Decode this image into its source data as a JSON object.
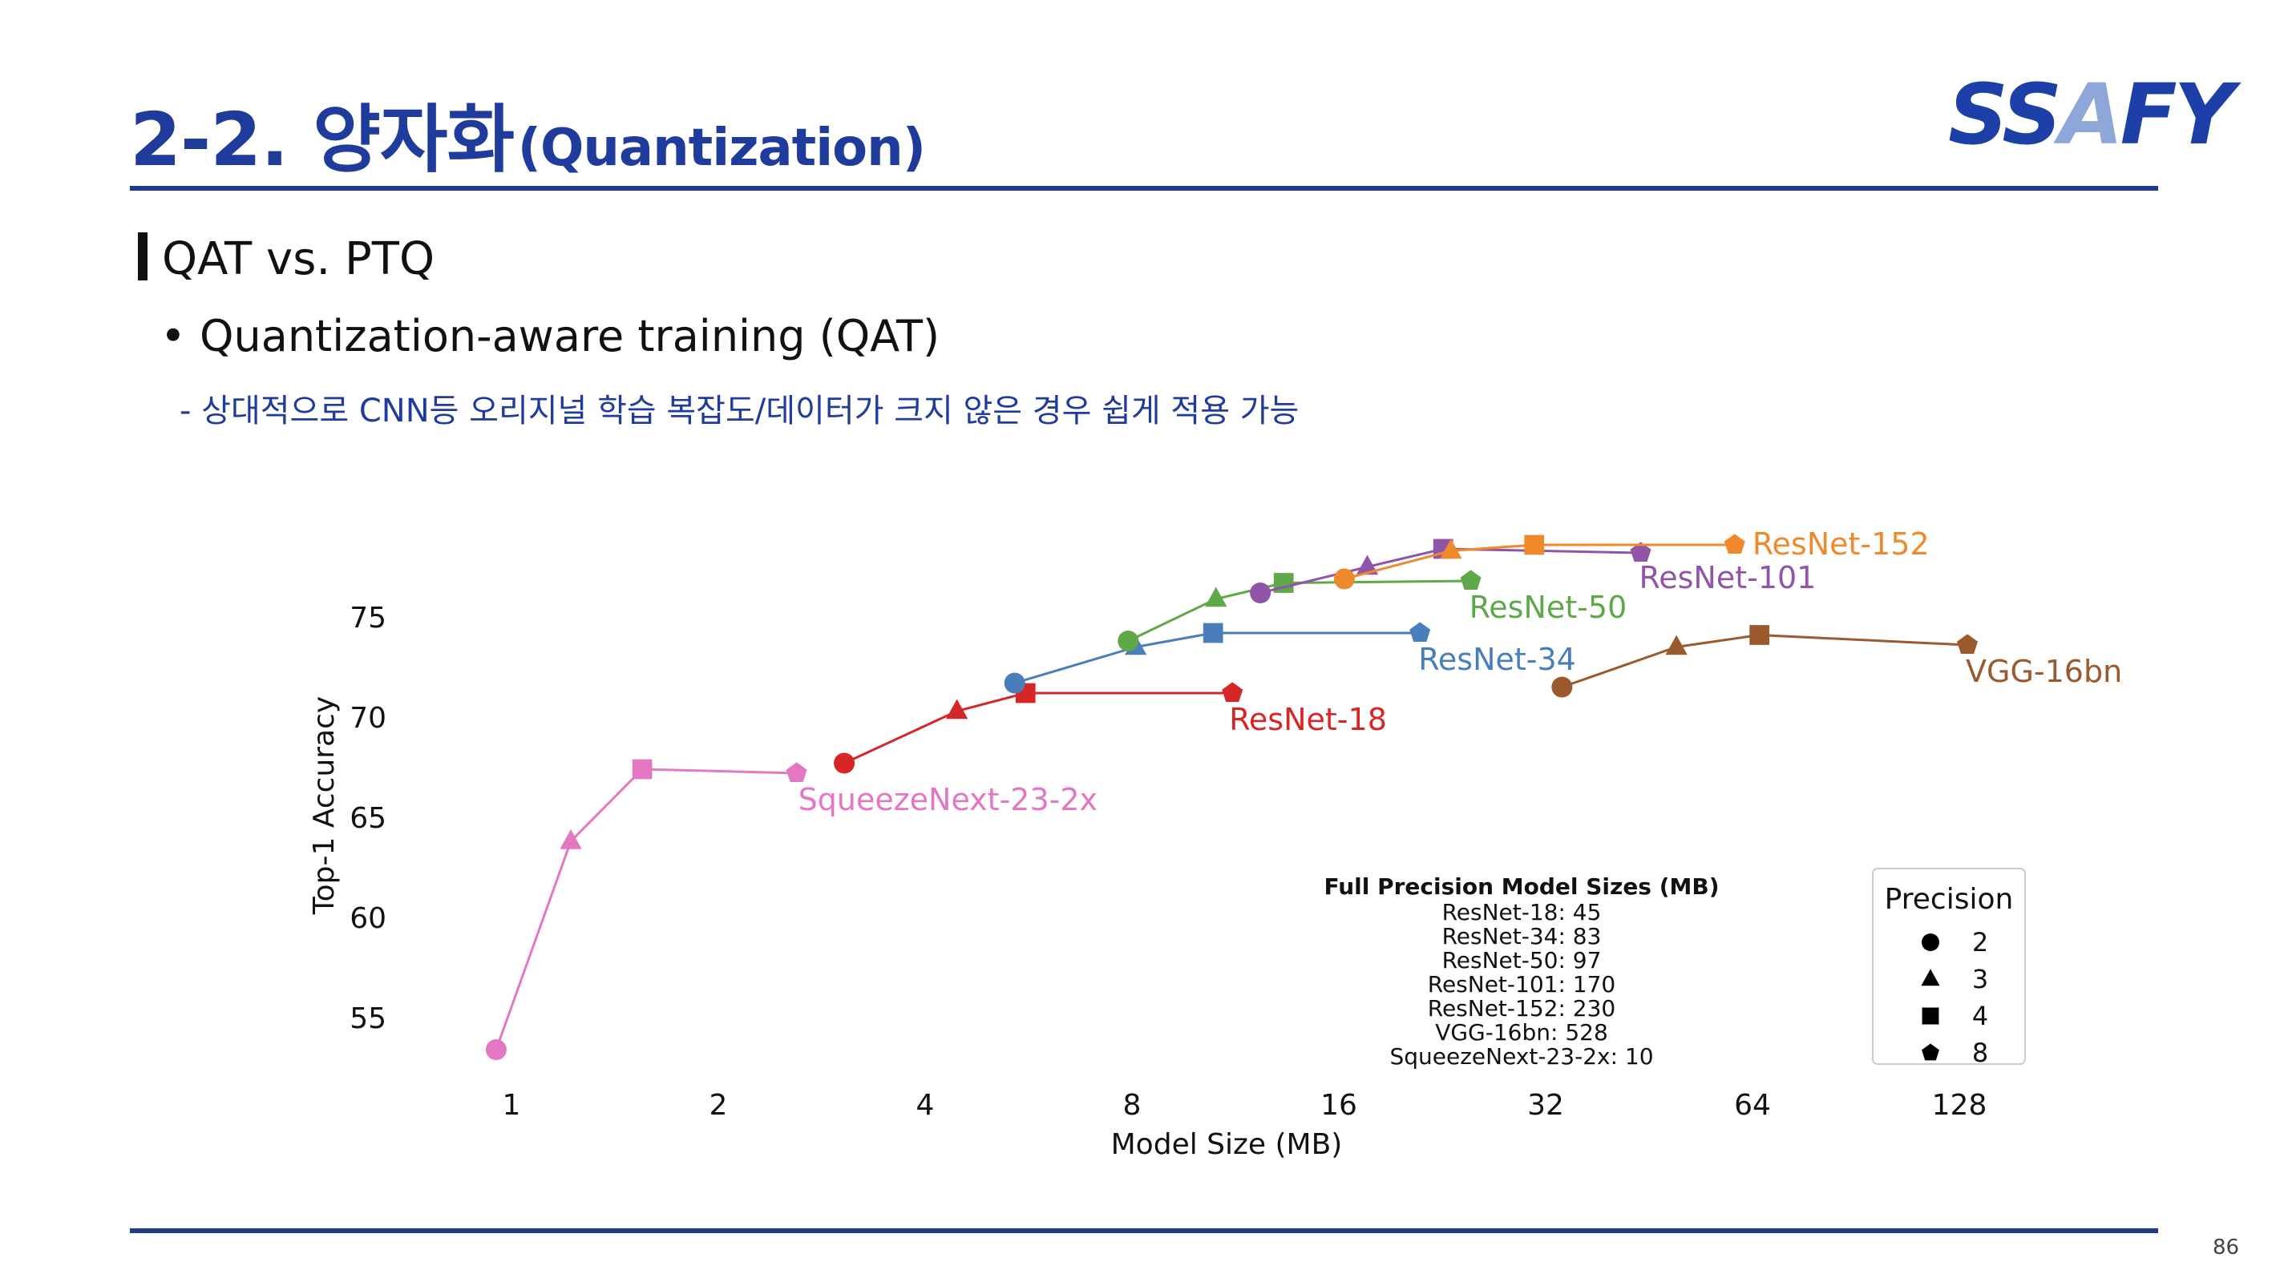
{
  "header": {
    "title_main": "2-2. 양자화",
    "title_sub": "(Quantization)",
    "logo_s": "SS",
    "logo_a": "A",
    "logo_fy": "FY"
  },
  "section": {
    "heading": "QAT vs. PTQ",
    "bullet": "• Quantization-aware training (QAT)",
    "sub": "- 상대적으로 CNN등 오리지널 학습 복잡도/데이터가 크지 않은 경우 쉽게 적용 가능"
  },
  "page_number": "86",
  "colors": {
    "title": "#1f3b9c",
    "rule": "#1f3b8c"
  },
  "chart_data": {
    "type": "line",
    "title": "",
    "xlabel": "Model Size (MB)",
    "ylabel": "Top-1 Accuracy",
    "x_scale": "log2",
    "xlim": [
      0.8,
      190
    ],
    "ylim": [
      52,
      79
    ],
    "x_ticks": [
      1,
      2,
      4,
      8,
      16,
      32,
      64,
      128
    ],
    "x_tick_labels": [
      "1",
      "2",
      "4",
      "8",
      "16",
      "32",
      "64",
      "128"
    ],
    "y_ticks": [
      55,
      60,
      65,
      70,
      75
    ],
    "y_tick_labels": [
      "55",
      "60",
      "65",
      "70",
      "75"
    ],
    "grid": false,
    "series": [
      {
        "name": "SqueezeNext-23-2x",
        "color": "#e377c2",
        "points": [
          {
            "x": 0.95,
            "y": 53.4,
            "p": 2
          },
          {
            "x": 1.22,
            "y": 63.8,
            "p": 3
          },
          {
            "x": 1.55,
            "y": 67.4,
            "p": 4
          },
          {
            "x": 2.6,
            "y": 67.2,
            "p": 8
          }
        ],
        "label": "SqueezeNext-23-2x"
      },
      {
        "name": "ResNet-18",
        "color": "#d62728",
        "points": [
          {
            "x": 3.05,
            "y": 67.7,
            "p": 2
          },
          {
            "x": 4.45,
            "y": 70.3,
            "p": 3
          },
          {
            "x": 5.6,
            "y": 71.2,
            "p": 4
          },
          {
            "x": 11.2,
            "y": 71.2,
            "p": 8
          }
        ],
        "label": "ResNet-18"
      },
      {
        "name": "ResNet-34",
        "color": "#4a7ebb",
        "points": [
          {
            "x": 5.4,
            "y": 71.7,
            "p": 2
          },
          {
            "x": 8.1,
            "y": 73.5,
            "p": 3
          },
          {
            "x": 10.5,
            "y": 74.2,
            "p": 4
          },
          {
            "x": 21.0,
            "y": 74.2,
            "p": 8
          }
        ],
        "label": "ResNet-34"
      },
      {
        "name": "ResNet-50",
        "color": "#5fa84a",
        "points": [
          {
            "x": 7.9,
            "y": 73.8,
            "p": 2
          },
          {
            "x": 10.6,
            "y": 75.9,
            "p": 3
          },
          {
            "x": 13.3,
            "y": 76.7,
            "p": 4
          },
          {
            "x": 24.9,
            "y": 76.8,
            "p": 8
          }
        ],
        "label": "ResNet-50"
      },
      {
        "name": "ResNet-101",
        "color": "#9155a8",
        "points": [
          {
            "x": 12.3,
            "y": 76.2,
            "p": 2
          },
          {
            "x": 17.6,
            "y": 77.5,
            "p": 3
          },
          {
            "x": 22.7,
            "y": 78.4,
            "p": 4
          },
          {
            "x": 44.0,
            "y": 78.2,
            "p": 8
          }
        ],
        "label": "ResNet-101"
      },
      {
        "name": "ResNet-152",
        "color": "#f0892c",
        "points": [
          {
            "x": 16.3,
            "y": 76.9,
            "p": 2
          },
          {
            "x": 23.3,
            "y": 78.3,
            "p": 3
          },
          {
            "x": 30.8,
            "y": 78.6,
            "p": 4
          },
          {
            "x": 60.3,
            "y": 78.6,
            "p": 8
          }
        ],
        "label": "ResNet-152"
      },
      {
        "name": "VGG-16bn",
        "color": "#9b5a2e",
        "points": [
          {
            "x": 33.8,
            "y": 71.5,
            "p": 2
          },
          {
            "x": 49.6,
            "y": 73.5,
            "p": 3
          },
          {
            "x": 65.5,
            "y": 74.1,
            "p": 4
          },
          {
            "x": 131.5,
            "y": 73.6,
            "p": 8
          }
        ],
        "label": "VGG-16bn"
      }
    ],
    "info_box": {
      "title": "Full Precision Model Sizes (MB)",
      "lines": [
        "ResNet-18: 45",
        "ResNet-34: 83",
        "ResNet-50: 97",
        "ResNet-101: 170",
        "ResNet-152: 230",
        "VGG-16bn: 528",
        "SqueezeNext-23-2x: 10"
      ]
    },
    "legend": {
      "title": "Precision",
      "placement": "lower-right",
      "entries": [
        {
          "marker": "circle",
          "label": "2"
        },
        {
          "marker": "triangle",
          "label": "3"
        },
        {
          "marker": "square",
          "label": "4"
        },
        {
          "marker": "pentagon",
          "label": "8"
        }
      ]
    }
  }
}
